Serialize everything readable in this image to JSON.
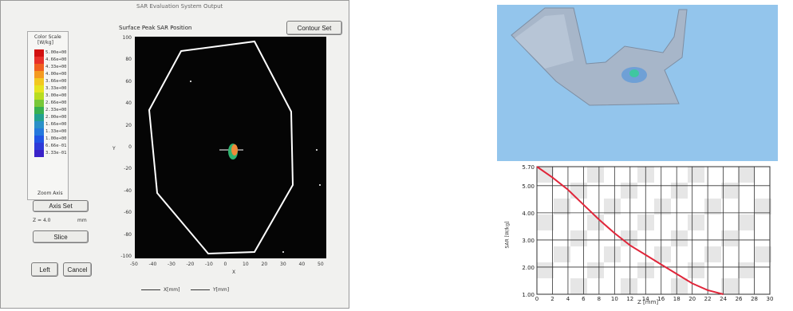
{
  "left_window": {
    "title": "SAR Evaluation System Output",
    "plot_title": "Surface  Peak SAR Position",
    "top_right_button": "Contour Set",
    "legend": {
      "title": "Color Scale",
      "unit": "[W/kg]",
      "values": [
        "5.00e+00",
        "4.66e+00",
        "4.33e+00",
        "4.00e+00",
        "3.66e+00",
        "3.33e+00",
        "3.00e+00",
        "2.66e+00",
        "2.33e+00",
        "2.00e+00",
        "1.66e+00",
        "1.33e+00",
        "1.00e+00",
        "6.66e-01",
        "3.33e-01"
      ],
      "colors": [
        "#d21010",
        "#e8302a",
        "#f06020",
        "#f49a20",
        "#f2c820",
        "#e6e420",
        "#b8dc20",
        "#78c838",
        "#38b050",
        "#22a090",
        "#2a90c8",
        "#2478dc",
        "#2054e4",
        "#2d3ad8",
        "#3a22c8"
      ]
    },
    "zoom_label": "Zoom Axis",
    "zoom_button": "Axis Set",
    "z_value_label": "Z = 4.0",
    "z_unit": "mm",
    "slider_label": "Slice",
    "left_button": "Left",
    "cancel_button": "Cancel",
    "x_legend": "X[mm]",
    "y_legend": "Y[mm]",
    "y_axis_label": "Y",
    "x_axis_label": "X",
    "y_ticks": [
      "100",
      "80",
      "60",
      "40",
      "20",
      "0",
      "-20",
      "-40",
      "-60",
      "-80",
      "-100"
    ],
    "x_ticks": [
      "-50",
      "-40",
      "-30",
      "-20",
      "-10",
      "0",
      "10",
      "20",
      "30",
      "40",
      "50"
    ]
  },
  "right_top": {
    "description_colors": {
      "background": "#93c5ec",
      "phantom": "#a7b6c9",
      "hotspot": "#3fc7a0"
    }
  },
  "right_bottom": {
    "chart_data": {
      "type": "line",
      "title": "",
      "xlabel": "Z [mm]",
      "ylabel": "SAR [W/kg]",
      "xlim": [
        0,
        30
      ],
      "ylim": [
        1.0,
        5.7
      ],
      "y_tick_labels": [
        "5.70",
        "5.00",
        "4.00",
        "3.00",
        "2.00",
        "1.00"
      ],
      "y_tick_values": [
        5.7,
        5.0,
        4.0,
        3.0,
        2.0,
        1.0
      ],
      "x_tick_values": [
        0,
        2,
        4,
        6,
        8,
        10,
        12,
        14,
        16,
        18,
        20,
        22,
        24,
        26,
        28,
        30
      ],
      "series": [
        {
          "values": [
            [
              0,
              5.7
            ],
            [
              2,
              5.3
            ],
            [
              4,
              4.85
            ],
            [
              6,
              4.3
            ],
            [
              8,
              3.75
            ],
            [
              10,
              3.25
            ],
            [
              12,
              2.8
            ],
            [
              14,
              2.45
            ],
            [
              16,
              2.1
            ],
            [
              18,
              1.75
            ],
            [
              20,
              1.4
            ],
            [
              22,
              1.15
            ],
            [
              24,
              1.0
            ]
          ],
          "color": "#e0263a"
        }
      ]
    }
  }
}
